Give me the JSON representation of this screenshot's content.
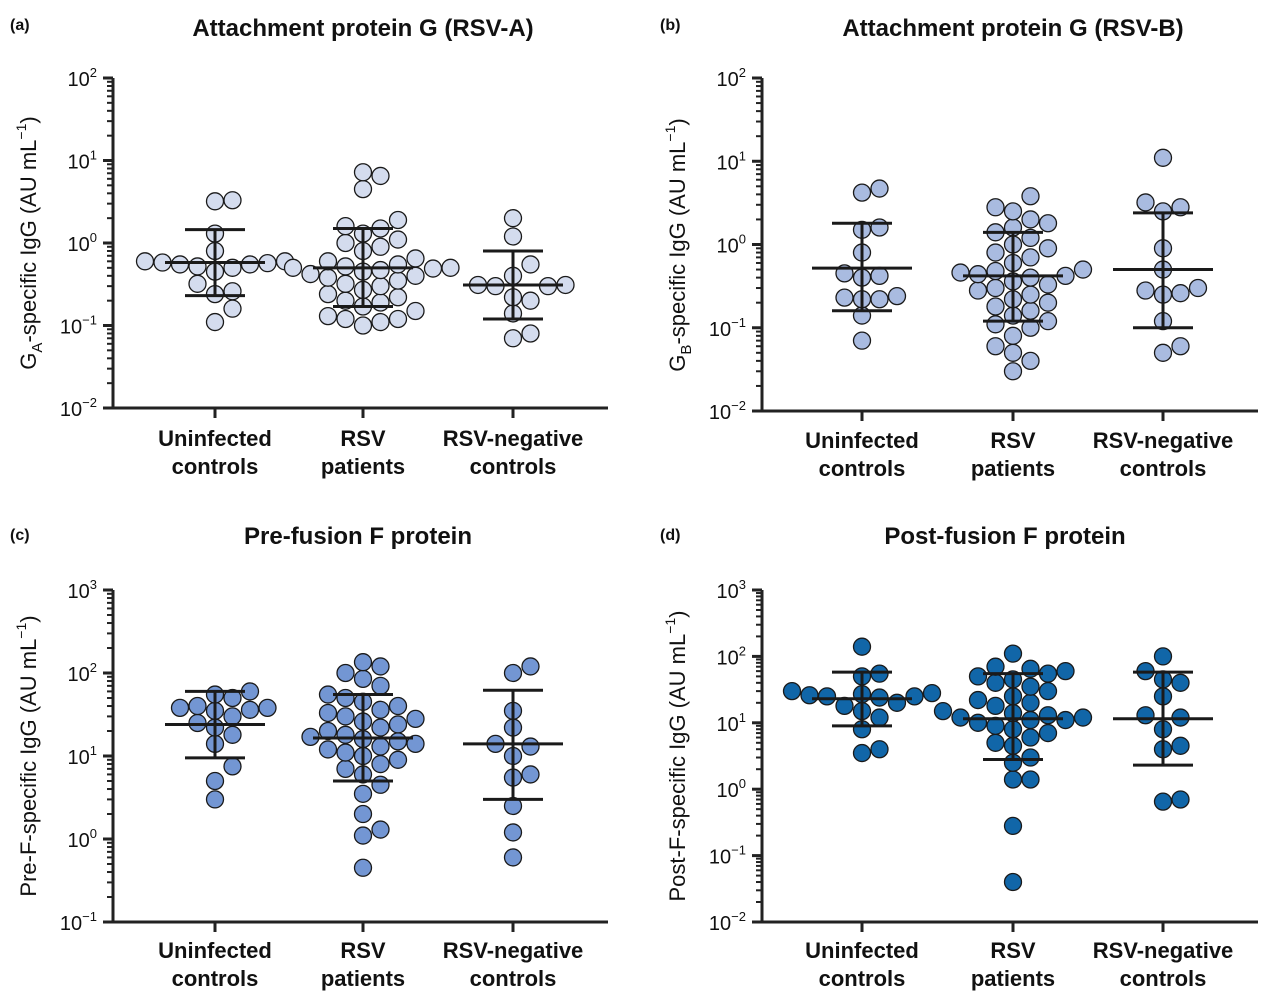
{
  "chart_data": [
    {
      "panel_label": "(a)",
      "type": "scatter",
      "title": "Attachment protein G (RSV-A)",
      "ylabel": {
        "pre": "G",
        "sub": "A",
        "post": "-specific IgG (AU mL",
        "sup": "−1",
        "end": ")"
      },
      "yscale": "log",
      "ylim_exp": [
        -2,
        2
      ],
      "tick_base": "10",
      "categories": [
        [
          "Uninfected",
          "controls"
        ],
        [
          "RSV",
          "patients"
        ],
        [
          "RSV-negative",
          "controls"
        ]
      ],
      "color": "#d4dcee",
      "groups": [
        {
          "values": [
            0.11,
            0.16,
            0.24,
            0.26,
            0.32,
            0.45,
            0.5,
            0.52,
            0.55,
            0.55,
            0.57,
            0.58,
            0.6,
            0.6,
            0.8,
            1.3,
            3.2,
            3.3
          ],
          "median": 0.58,
          "lower": 0.23,
          "upper": 1.45
        },
        {
          "values": [
            0.1,
            0.11,
            0.12,
            0.12,
            0.13,
            0.15,
            0.17,
            0.19,
            0.2,
            0.22,
            0.24,
            0.27,
            0.3,
            0.32,
            0.35,
            0.38,
            0.4,
            0.42,
            0.45,
            0.47,
            0.49,
            0.5,
            0.5,
            0.52,
            0.55,
            0.6,
            0.65,
            0.8,
            0.9,
            1.0,
            1.1,
            1.3,
            1.5,
            1.6,
            1.9,
            4.5,
            6.5,
            7.2
          ],
          "median": 0.5,
          "lower": 0.17,
          "upper": 1.5
        },
        {
          "values": [
            0.07,
            0.08,
            0.14,
            0.2,
            0.22,
            0.3,
            0.3,
            0.31,
            0.31,
            0.4,
            0.55,
            1.2,
            2.0
          ],
          "median": 0.31,
          "lower": 0.12,
          "upper": 0.8
        }
      ]
    },
    {
      "panel_label": "(b)",
      "type": "scatter",
      "title": "Attachment protein G (RSV-B)",
      "ylabel": {
        "pre": "G",
        "sub": "B",
        "post": "-specific IgG (AU mL",
        "sup": "−1",
        "end": ")"
      },
      "yscale": "log",
      "ylim_exp": [
        -2,
        2
      ],
      "tick_base": "10",
      "categories": [
        [
          "Uninfected",
          "controls"
        ],
        [
          "RSV",
          "patients"
        ],
        [
          "RSV-negative",
          "controls"
        ]
      ],
      "color": "#a9bbe0",
      "groups": [
        {
          "values": [
            0.07,
            0.14,
            0.22,
            0.22,
            0.23,
            0.24,
            0.4,
            0.42,
            0.45,
            0.8,
            1.5,
            1.6,
            4.2,
            4.7
          ],
          "median": 0.52,
          "lower": 0.16,
          "upper": 1.8
        },
        {
          "values": [
            0.03,
            0.04,
            0.05,
            0.06,
            0.08,
            0.1,
            0.11,
            0.12,
            0.14,
            0.16,
            0.18,
            0.2,
            0.22,
            0.25,
            0.28,
            0.3,
            0.33,
            0.36,
            0.4,
            0.42,
            0.44,
            0.46,
            0.48,
            0.5,
            0.6,
            0.7,
            0.8,
            0.9,
            1.0,
            1.2,
            1.4,
            1.6,
            1.8,
            2.0,
            2.5,
            2.8,
            3.8
          ],
          "median": 0.42,
          "lower": 0.12,
          "upper": 1.4
        },
        {
          "values": [
            0.05,
            0.06,
            0.12,
            0.25,
            0.26,
            0.28,
            0.3,
            0.5,
            0.9,
            2.5,
            2.8,
            3.2,
            11.0
          ],
          "median": 0.5,
          "lower": 0.1,
          "upper": 2.4
        }
      ]
    },
    {
      "panel_label": "(c)",
      "type": "scatter",
      "title": "Pre-fusion F protein",
      "ylabel": {
        "pre": "Pre-F-specific IgG (AU mL",
        "sub": "",
        "post": "",
        "sup": "−1",
        "end": ")"
      },
      "yscale": "log",
      "ylim_exp": [
        -1,
        3
      ],
      "tick_base": "10",
      "categories": [
        [
          "Uninfected",
          "controls"
        ],
        [
          "RSV",
          "patients"
        ],
        [
          "RSV-negative",
          "controls"
        ]
      ],
      "color": "#7396d3",
      "groups": [
        {
          "values": [
            3.0,
            5.0,
            7.5,
            14.0,
            18.0,
            22.0,
            25.0,
            30.0,
            35.0,
            36.0,
            38.0,
            38.0,
            40.0,
            50.0,
            55.0,
            60.0
          ],
          "median": 24.0,
          "lower": 9.5,
          "upper": 60.0
        },
        {
          "values": [
            0.45,
            1.1,
            1.3,
            2.0,
            3.5,
            4.5,
            6.0,
            7.0,
            8.0,
            9.0,
            10.0,
            11.0,
            12.0,
            13.0,
            14.0,
            15.0,
            16.0,
            17.0,
            18.0,
            20.0,
            22.0,
            24.0,
            26.0,
            28.0,
            30.0,
            33.0,
            36.0,
            40.0,
            45.0,
            50.0,
            55.0,
            70.0,
            85.0,
            100.0,
            120.0,
            135.0
          ],
          "median": 16.5,
          "lower": 5.0,
          "upper": 55.0
        },
        {
          "values": [
            0.6,
            1.2,
            2.5,
            5.5,
            6.0,
            10.0,
            13.0,
            14.0,
            22.0,
            35.0,
            100.0,
            120.0
          ],
          "median": 14.0,
          "lower": 3.0,
          "upper": 62.0
        }
      ]
    },
    {
      "panel_label": "(d)",
      "type": "scatter",
      "title": "Post-fusion F protein",
      "ylabel": {
        "pre": "Post-F-specific IgG (AU mL",
        "sub": "",
        "post": "",
        "sup": "−1",
        "end": ")"
      },
      "yscale": "log",
      "ylim_exp": [
        -2,
        3
      ],
      "tick_base": "10",
      "categories": [
        [
          "Uninfected",
          "controls"
        ],
        [
          "RSV",
          "patients"
        ],
        [
          "RSV-negative",
          "controls"
        ]
      ],
      "color": "#1166a8",
      "groups": [
        {
          "values": [
            3.5,
            4.0,
            8.0,
            12.0,
            15.0,
            18.0,
            20.0,
            24.0,
            25.0,
            25.0,
            26.0,
            27.0,
            28.0,
            30.0,
            50.0,
            55.0,
            140.0
          ],
          "median": 23.0,
          "lower": 9.0,
          "upper": 58.0
        },
        {
          "values": [
            0.04,
            0.28,
            1.4,
            1.4,
            2.5,
            3.0,
            4.5,
            5.0,
            6.0,
            7.0,
            8.0,
            9.0,
            10.0,
            11.0,
            11.0,
            12.0,
            12.0,
            13.0,
            14.0,
            15.0,
            18.0,
            20.0,
            22.0,
            25.0,
            30.0,
            35.0,
            40.0,
            45.0,
            50.0,
            55.0,
            60.0,
            65.0,
            70.0,
            110.0
          ],
          "median": 11.5,
          "lower": 2.8,
          "upper": 55.0
        },
        {
          "values": [
            0.65,
            0.7,
            4.0,
            4.5,
            8.0,
            12.0,
            13.0,
            25.0,
            40.0,
            45.0,
            60.0,
            100.0
          ],
          "median": 11.5,
          "lower": 2.3,
          "upper": 58.0
        }
      ]
    }
  ]
}
